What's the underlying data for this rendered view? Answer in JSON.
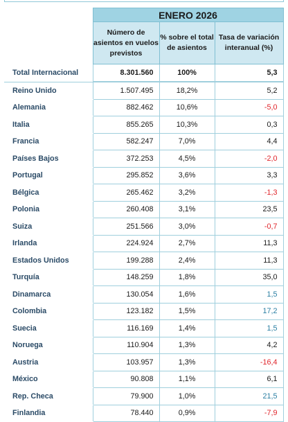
{
  "period": "ENERO 2026",
  "columns": {
    "seats": "Número de asientos en vuelos previstos",
    "share": "% sobre el total de asientos",
    "variation": "Tasa de variación interanual (%)"
  },
  "total": {
    "label": "Total Internacional",
    "seats": "8.301.560",
    "share": "100%",
    "variation": "5,3"
  },
  "rows": [
    {
      "country": "Reino Unido",
      "seats": "1.507.495",
      "share": "18,2%",
      "variation": "5,2",
      "tone": "normal"
    },
    {
      "country": "Alemania",
      "seats": "882.462",
      "share": "10,6%",
      "variation": "-5,0",
      "tone": "negative"
    },
    {
      "country": "Italia",
      "seats": "855.265",
      "share": "10,3%",
      "variation": "0,3",
      "tone": "normal"
    },
    {
      "country": "Francia",
      "seats": "582.247",
      "share": "7,0%",
      "variation": "4,4",
      "tone": "normal"
    },
    {
      "country": "Países Bajos",
      "seats": "372.253",
      "share": "4,5%",
      "variation": "-2,0",
      "tone": "negative"
    },
    {
      "country": "Portugal",
      "seats": "295.852",
      "share": "3,6%",
      "variation": "3,3",
      "tone": "normal"
    },
    {
      "country": "Bélgica",
      "seats": "265.462",
      "share": "3,2%",
      "variation": "-1,3",
      "tone": "negative"
    },
    {
      "country": "Polonia",
      "seats": "260.408",
      "share": "3,1%",
      "variation": "23,5",
      "tone": "normal"
    },
    {
      "country": "Suiza",
      "seats": "251.566",
      "share": "3,0%",
      "variation": "-0,7",
      "tone": "negative"
    },
    {
      "country": "Irlanda",
      "seats": "224.924",
      "share": "2,7%",
      "variation": "11,3",
      "tone": "normal"
    },
    {
      "country": "Estados Unidos",
      "seats": "199.288",
      "share": "2,4%",
      "variation": "11,3",
      "tone": "normal"
    },
    {
      "country": "Turquía",
      "seats": "148.259",
      "share": "1,8%",
      "variation": "35,0",
      "tone": "normal"
    },
    {
      "country": "Dinamarca",
      "seats": "130.054",
      "share": "1,6%",
      "variation": "1,5",
      "tone": "positive"
    },
    {
      "country": "Colombia",
      "seats": "123.182",
      "share": "1,5%",
      "variation": "17,2",
      "tone": "positive"
    },
    {
      "country": "Suecia",
      "seats": "116.169",
      "share": "1,4%",
      "variation": "1,5",
      "tone": "positive"
    },
    {
      "country": "Noruega",
      "seats": "110.904",
      "share": "1,3%",
      "variation": "4,2",
      "tone": "normal"
    },
    {
      "country": "Austria",
      "seats": "103.957",
      "share": "1,3%",
      "variation": "-16,4",
      "tone": "negative"
    },
    {
      "country": "México",
      "seats": "90.808",
      "share": "1,1%",
      "variation": "6,1",
      "tone": "normal"
    },
    {
      "country": "Rep. Checa",
      "seats": "79.900",
      "share": "1,0%",
      "variation": "21,5",
      "tone": "positive"
    },
    {
      "country": "Finlandia",
      "seats": "78.440",
      "share": "0,9%",
      "variation": "-7,9",
      "tone": "negative"
    }
  ],
  "colors": {
    "negative": "#e0252b",
    "positive": "#2b7fa3",
    "header": "#9fd3e3",
    "subheader": "#cfe8f1"
  }
}
